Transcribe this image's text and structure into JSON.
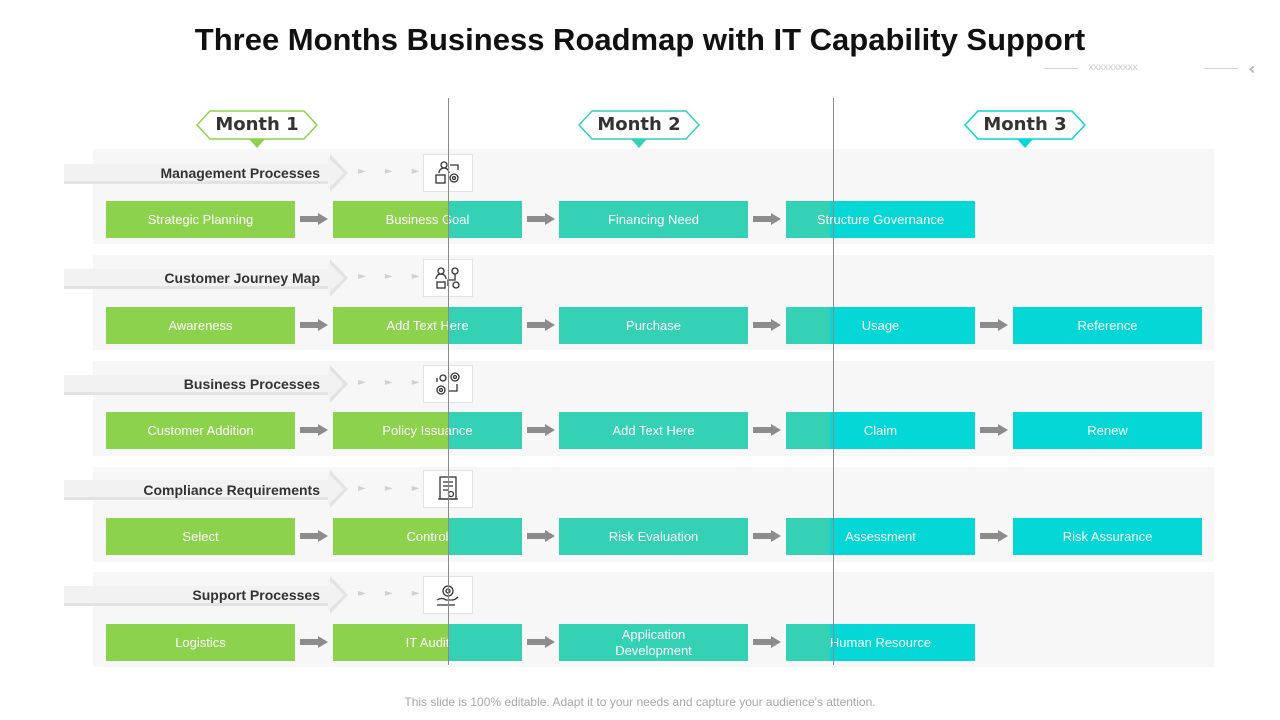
{
  "title": "Three Months Business Roadmap with IT Capability Support",
  "decoration": {
    "cross_marks": "xxxxxxxxxx",
    "chevrons": "‹‹‹‹"
  },
  "months": [
    "Month 1",
    "Month 2",
    "Month 3"
  ],
  "colors": {
    "month1": "#8cd24c",
    "month2": "#34d1b4",
    "month3": "#05d6d6",
    "connector_arrow": "#8c8c8c",
    "band": "#f7f7f7"
  },
  "rows": [
    {
      "heading": "Management Processes",
      "icon": "process-management-icon",
      "steps": [
        "Strategic Planning",
        "Business Goal",
        "Financing Need",
        "Structure Governance"
      ]
    },
    {
      "heading": "Customer Journey Map",
      "icon": "customer-journey-icon",
      "steps": [
        "Awareness",
        "Add Text Here",
        "Purchase",
        "Usage",
        "Reference"
      ]
    },
    {
      "heading": "Business Processes",
      "icon": "business-gears-icon",
      "steps": [
        "Customer Addition",
        "Policy Issuance",
        "Add Text Here",
        "Claim",
        "Renew"
      ]
    },
    {
      "heading": "Compliance Requirements",
      "icon": "compliance-document-icon",
      "steps": [
        "Select",
        "Control",
        "Risk Evaluation",
        "Assessment",
        "Risk Assurance"
      ]
    },
    {
      "heading": "Support Processes",
      "icon": "support-hand-gear-icon",
      "steps": [
        "Logistics",
        "IT Audit",
        "Application\nDevelopment",
        "Human Resource"
      ]
    }
  ],
  "footer": "This slide is 100% editable. Adapt it to your needs and capture your audience's attention."
}
